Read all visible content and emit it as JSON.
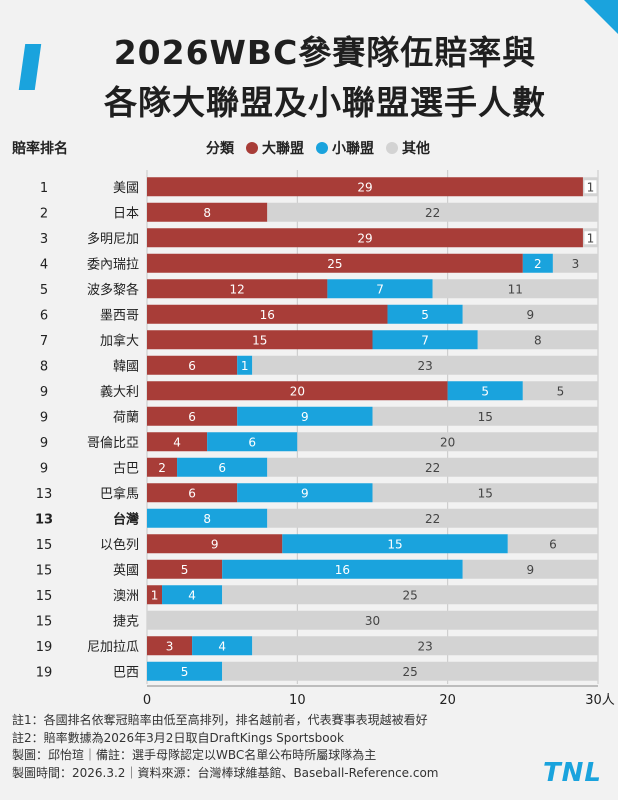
{
  "header": {
    "title_line1": "2026WBC參賽隊伍賠率與",
    "title_line2": "各隊大聯盟及小聯盟選手人數",
    "rank_header": "賠率排名",
    "legend_title": "分類"
  },
  "legend": [
    {
      "label": "大聯盟",
      "color": "#a83d38"
    },
    {
      "label": "小聯盟",
      "color": "#1aa3dd"
    },
    {
      "label": "其他",
      "color": "#d3d3d3"
    }
  ],
  "chart_data": {
    "type": "bar",
    "orientation": "horizontal",
    "stacked": true,
    "title": "2026WBC參賽隊伍賠率與各隊大聯盟及小聯盟選手人數",
    "xlim": [
      0,
      30
    ],
    "x_ticks": [
      0,
      10,
      20
    ],
    "x_end_label": "30人",
    "categories": [
      "美國",
      "日本",
      "多明尼加",
      "委內瑞拉",
      "波多黎各",
      "墨西哥",
      "加拿大",
      "韓國",
      "義大利",
      "荷蘭",
      "哥倫比亞",
      "古巴",
      "巴拿馬",
      "台灣",
      "以色列",
      "英國",
      "澳洲",
      "捷克",
      "尼加拉瓜",
      "巴西"
    ],
    "ranks": [
      "1",
      "2",
      "3",
      "4",
      "5",
      "6",
      "7",
      "8",
      "9",
      "9",
      "9",
      "9",
      "13",
      "13",
      "15",
      "15",
      "15",
      "15",
      "19",
      "19"
    ],
    "highlight_category": "台灣",
    "series": [
      {
        "name": "大聯盟",
        "color": "#a83d38",
        "values": [
          29,
          8,
          29,
          25,
          12,
          16,
          15,
          6,
          20,
          6,
          4,
          2,
          6,
          0,
          9,
          5,
          1,
          0,
          3,
          0
        ]
      },
      {
        "name": "小聯盟",
        "color": "#1aa3dd",
        "values": [
          0,
          0,
          0,
          2,
          7,
          5,
          7,
          1,
          5,
          9,
          6,
          6,
          9,
          8,
          15,
          16,
          4,
          0,
          4,
          5
        ]
      },
      {
        "name": "其他",
        "color": "#d3d3d3",
        "values": [
          1,
          22,
          1,
          3,
          11,
          9,
          8,
          23,
          5,
          15,
          20,
          22,
          15,
          22,
          6,
          9,
          25,
          30,
          23,
          25
        ]
      }
    ]
  },
  "notes": [
    "註1：各國排名依奪冠賠率由低至高排列，排名越前者，代表賽事表現越被看好",
    "註2：賠率數據為2026年3月2日取自DraftKings Sportsbook",
    "製圖：邱怡瑄｜備註：選手母隊認定以WBC名單公布時所屬球隊為主",
    "製圖時間：2026.3.2｜資料來源：台灣棒球維基館、Baseball-Reference.com"
  ],
  "logo": "TNL"
}
